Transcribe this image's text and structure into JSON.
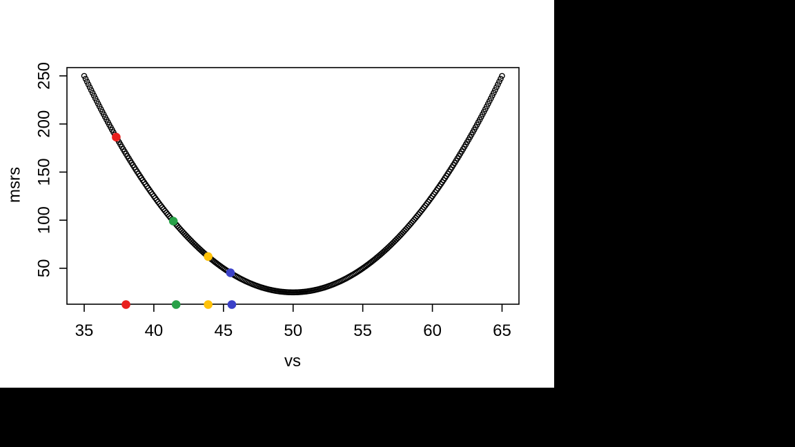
{
  "window": {
    "outer_background": "#000000",
    "canvas_background": "#FFFFFF"
  },
  "chart_data": {
    "type": "scatter",
    "title": "",
    "xlabel": "vs",
    "ylabel": "msrs",
    "x_ticks": [
      35,
      40,
      45,
      50,
      55,
      60,
      65
    ],
    "y_ticks": [
      50,
      100,
      150,
      200,
      250
    ],
    "xlim": [
      33.8,
      66.2
    ],
    "ylim": [
      13,
      259
    ],
    "grid": false,
    "legend": false,
    "point_style": "open-circle",
    "curve": {
      "description": "dense chain of open circles tracing quadratic msrs = (vs-50)^2 + 25",
      "x_start": 35,
      "x_end": 65,
      "x_step": 0.1,
      "vertex": {
        "vs": 50,
        "msrs": 25
      },
      "endpoints_msrs": 250,
      "stroke_color": "#000000"
    },
    "highlight_points": [
      {
        "name": "red",
        "vs": 37.3,
        "msrs": 186.3,
        "color": "#E9201E"
      },
      {
        "name": "green",
        "vs": 41.4,
        "msrs": 99.0,
        "color": "#28A148"
      },
      {
        "name": "gold",
        "vs": 43.9,
        "msrs": 62.2,
        "color": "#FFC20A"
      },
      {
        "name": "blue",
        "vs": 45.5,
        "msrs": 45.3,
        "color": "#3B41C8"
      }
    ],
    "rug_points": [
      {
        "name": "red",
        "vs": 38.0,
        "color": "#E9201E"
      },
      {
        "name": "green",
        "vs": 41.6,
        "color": "#28A148"
      },
      {
        "name": "gold",
        "vs": 43.9,
        "color": "#FFC20A"
      },
      {
        "name": "blue",
        "vs": 45.6,
        "color": "#3B41C8"
      }
    ]
  }
}
